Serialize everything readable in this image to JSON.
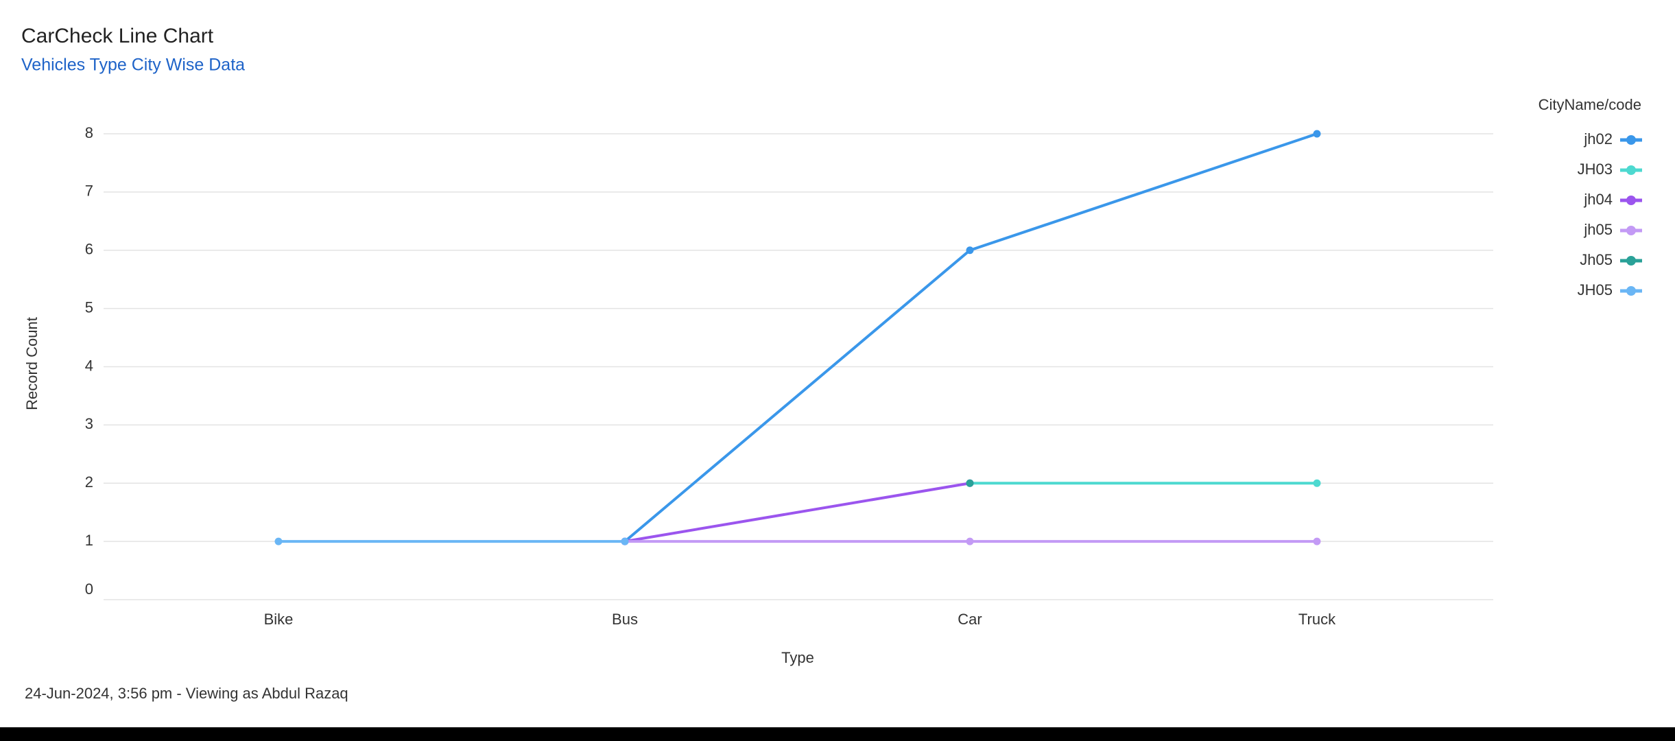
{
  "chart_data": {
    "type": "line",
    "title": "CarCheck Line Chart",
    "subtitle": "Vehicles Type City Wise Data",
    "x_label": "Type",
    "y_label": "Record Count",
    "legend_title": "CityName/code",
    "legend_position": "top-right",
    "footer": "24-Jun-2024, 3:56 pm - Viewing as Abdul Razaq",
    "categories": [
      "Bike",
      "Bus",
      "Car",
      "Truck"
    ],
    "ylim": [
      0,
      8
    ],
    "yticks": [
      0,
      1,
      2,
      3,
      4,
      5,
      6,
      7,
      8
    ],
    "grid": true,
    "series": [
      {
        "name": "jh02",
        "color": "#3a97ea",
        "values": [
          null,
          1,
          6,
          8
        ]
      },
      {
        "name": "JH03",
        "color": "#4dd9d0",
        "values": [
          null,
          null,
          2,
          2
        ]
      },
      {
        "name": "jh04",
        "color": "#9b55ee",
        "values": [
          null,
          1,
          2,
          null
        ]
      },
      {
        "name": "jh05",
        "color": "#c39af5",
        "values": [
          null,
          1,
          1,
          1
        ]
      },
      {
        "name": "Jh05",
        "color": "#2aa198",
        "values": [
          null,
          null,
          2,
          null
        ]
      },
      {
        "name": "JH05",
        "color": "#6ab6f5",
        "values": [
          1,
          1,
          null,
          null
        ]
      }
    ]
  }
}
